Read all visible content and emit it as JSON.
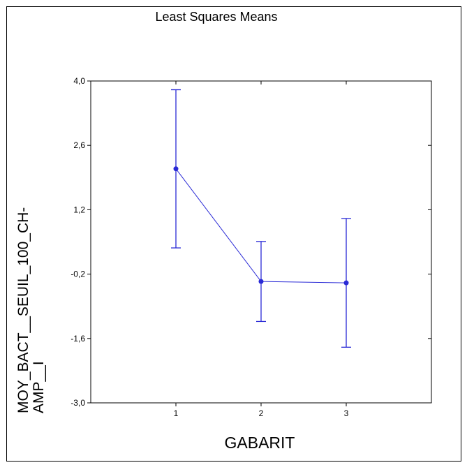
{
  "chart_data": {
    "type": "line",
    "title": "Least Squares Means",
    "xlabel": "GABARIT",
    "ylabel": [
      "MOY_BACT__SEUIL_100_CH-",
      "AMP__I"
    ],
    "x": [
      1,
      2,
      3
    ],
    "series": [
      {
        "color": "#2a2ad6",
        "values": [
          2.09,
          -0.36,
          -0.39
        ],
        "errors": [
          1.72,
          0.87,
          1.4
        ]
      }
    ],
    "xlim": [
      0,
      4
    ],
    "xticks": [
      1,
      2,
      3
    ],
    "ylim": [
      -3.0,
      4.0
    ],
    "yticks": [
      {
        "value": -3.0,
        "label": "-3,0"
      },
      {
        "value": -1.6,
        "label": "-1,6"
      },
      {
        "value": -0.2,
        "label": "-0,2"
      },
      {
        "value": 1.2,
        "label": "1,2"
      },
      {
        "value": 2.6,
        "label": "2,6"
      },
      {
        "value": 4.0,
        "label": "4,0"
      }
    ]
  }
}
